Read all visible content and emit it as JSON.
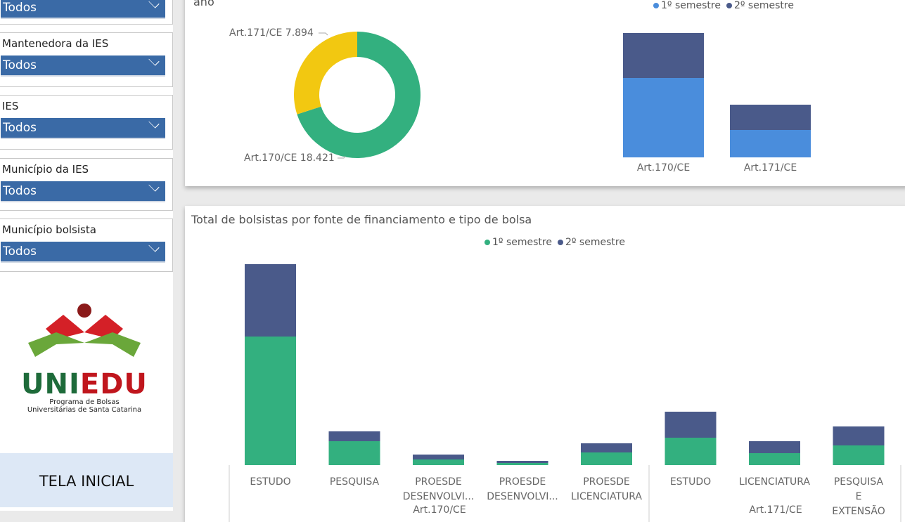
{
  "filters": [
    {
      "label": "",
      "value": "Todos"
    },
    {
      "label": "Mantenedora da IES",
      "value": "Todos"
    },
    {
      "label": "IES",
      "value": "Todos"
    },
    {
      "label": "Município da IES",
      "value": "Todos"
    },
    {
      "label": "Município bolsista",
      "value": "Todos"
    }
  ],
  "logo": {
    "name": "UNIEDU",
    "sub1": "Programa de Bolsas",
    "sub2": "Universitárias de Santa Catarina"
  },
  "home_button": "TELA INICIAL",
  "top_card": {
    "title_fragment": "ano"
  },
  "colors": {
    "green": "#33b07f",
    "yellow": "#f2c811",
    "blue": "#4a8ddc",
    "navy": "#4a5a8a"
  },
  "chart_data": [
    {
      "type": "pie",
      "title": "ano",
      "slices": [
        {
          "label": "Art.170/CE",
          "value": 18421,
          "display": "Art.170/CE 18.421"
        },
        {
          "label": "Art.171/CE",
          "value": 7894,
          "display": "Art.171/CE 7.894"
        }
      ]
    },
    {
      "type": "bar",
      "stacked": true,
      "legend": [
        "1º semestre",
        "2º semestre"
      ],
      "categories": [
        "Art.170/CE",
        "Art.171/CE"
      ],
      "series": [
        {
          "name": "1º semestre",
          "values": [
            113,
            39
          ]
        },
        {
          "name": "2º semestre",
          "values": [
            64,
            36
          ]
        }
      ]
    },
    {
      "type": "bar",
      "stacked": true,
      "title": "Total de bolsistas por fonte de financiamento e tipo de bolsa",
      "legend": [
        "1º semestre",
        "2º semestre"
      ],
      "groups": [
        {
          "label": "Art.170/CE",
          "categories": [
            "ESTUDO",
            "PESQUISA",
            "PROESDE DESENVOLVI...",
            "PROESDE DESENVOLVI...",
            "PROESDE LICENCIATURA"
          ]
        },
        {
          "label": "Art.171/CE",
          "categories": [
            "ESTUDO",
            "LICENCIATURA",
            "PESQUISA E EXTENSÃO"
          ]
        }
      ],
      "series": [
        {
          "name": "1º semestre",
          "values": [
            183,
            34,
            8,
            3,
            18,
            39,
            17,
            28
          ]
        },
        {
          "name": "2º semestre",
          "values": [
            103,
            14,
            7,
            3,
            13,
            37,
            17,
            27
          ]
        }
      ]
    }
  ]
}
